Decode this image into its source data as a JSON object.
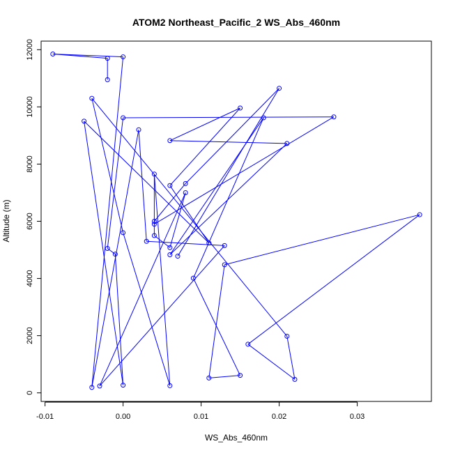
{
  "chart_data": {
    "type": "line",
    "title": "ATOM2 Northeast_Pacific_2 WS_Abs_460nm",
    "xlabel": "WS_Abs_460nm",
    "ylabel": "Altitude (m)",
    "xlim": [
      -0.0105,
      0.0395
    ],
    "ylim": [
      -300,
      12300
    ],
    "x_ticks": [
      -0.01,
      0.0,
      0.01,
      0.02,
      0.03
    ],
    "x_tick_labels": [
      "-0.01",
      "0.00",
      "0.01",
      "0.02",
      "0.03"
    ],
    "y_ticks": [
      0,
      2000,
      4000,
      6000,
      8000,
      10000,
      12000
    ],
    "y_tick_labels": [
      "0",
      "2000",
      "4000",
      "6000",
      "8000",
      "10000",
      "12000"
    ],
    "grid": false,
    "legend": "none",
    "marker": "open-circle",
    "color": "#0000ff",
    "series": [
      {
        "points": [
          {
            "x": -0.002,
            "y": 10950
          },
          {
            "x": -0.002,
            "y": 11700
          },
          {
            "x": -0.009,
            "y": 11850
          },
          {
            "x": 0.0,
            "y": 11750
          },
          {
            "x": -0.004,
            "y": 190
          },
          {
            "x": 0.002,
            "y": 9200
          },
          {
            "x": 0.003,
            "y": 5300
          },
          {
            "x": 0.013,
            "y": 5150
          },
          {
            "x": -0.003,
            "y": 240
          },
          {
            "x": 0.008,
            "y": 7000
          },
          {
            "x": 0.006,
            "y": 5080
          },
          {
            "x": 0.004,
            "y": 5500
          },
          {
            "x": 0.004,
            "y": 7650
          },
          {
            "x": 0.006,
            "y": 250
          },
          {
            "x": 0.0,
            "y": 5600
          },
          {
            "x": -0.004,
            "y": 10300
          },
          {
            "x": 0.021,
            "y": 1980
          },
          {
            "x": 0.022,
            "y": 470
          },
          {
            "x": 0.016,
            "y": 1700
          },
          {
            "x": 0.038,
            "y": 6230
          },
          {
            "x": 0.013,
            "y": 4480
          },
          {
            "x": 0.011,
            "y": 520
          },
          {
            "x": 0.015,
            "y": 610
          },
          {
            "x": 0.009,
            "y": 4010
          },
          {
            "x": 0.018,
            "y": 9620
          },
          {
            "x": 0.006,
            "y": 4830
          },
          {
            "x": 0.021,
            "y": 8720
          },
          {
            "x": 0.006,
            "y": 8820
          },
          {
            "x": 0.015,
            "y": 9960
          },
          {
            "x": 0.006,
            "y": 7250
          },
          {
            "x": 0.011,
            "y": 5240
          },
          {
            "x": -0.005,
            "y": 9500
          },
          {
            "x": 0.0,
            "y": 270
          },
          {
            "x": -0.001,
            "y": 4850
          },
          {
            "x": -0.002,
            "y": 5050
          },
          {
            "x": 0.0,
            "y": 9620
          },
          {
            "x": 0.027,
            "y": 9650
          },
          {
            "x": 0.004,
            "y": 5900
          },
          {
            "x": 0.004,
            "y": 6000
          },
          {
            "x": 0.008,
            "y": 7320
          },
          {
            "x": 0.02,
            "y": 10650
          },
          {
            "x": 0.007,
            "y": 4780
          }
        ]
      }
    ]
  }
}
